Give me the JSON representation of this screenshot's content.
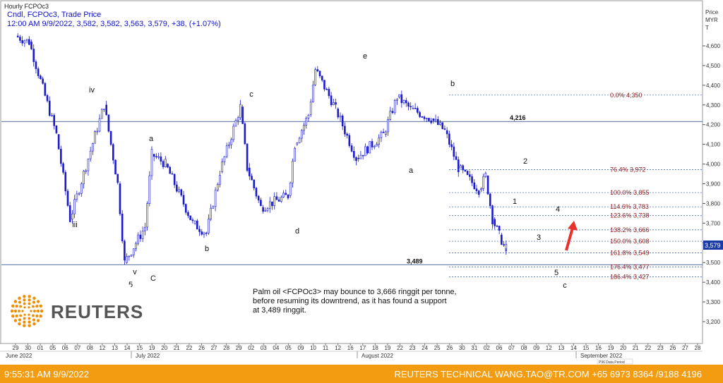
{
  "chart_data": {
    "type": "candlestick",
    "title": "Hourly FCPOc3",
    "header_line1": "Cndl, FCPOc3, Trade Price",
    "header_line2": "12:00 AM 9/9/2022, 3,582, 3,582, 3,563, 3,579, +38, (+1.07%)",
    "ylabel": "Price MYR T",
    "ylabel_lines": [
      "Price",
      "MYR",
      "T"
    ],
    "ylim": [
      3100,
      4700
    ],
    "y_ticks": [
      "3,200",
      "3,300",
      "3,400",
      "3,500",
      "3,600",
      "3,700",
      "3,800",
      "3,900",
      "4,000",
      "4,100",
      "4,200",
      "4,300",
      "4,400",
      "4,500",
      "4,600"
    ],
    "last_price": "3,579",
    "x_day_ticks": [
      "29",
      "30",
      "01",
      "05",
      "06",
      "07",
      "08",
      "12",
      "13",
      "14",
      "15",
      "19",
      "20",
      "21",
      "22",
      "26",
      "27",
      "28",
      "29",
      "02",
      "03",
      "04",
      "05",
      "09",
      "10",
      "11",
      "12",
      "16",
      "17",
      "18",
      "19",
      "22",
      "23",
      "24",
      "25",
      "26",
      "30",
      "31",
      "02",
      "06",
      "07",
      "08",
      "09",
      "12",
      "13",
      "14",
      "15",
      "16",
      "19",
      "20",
      "21",
      "22",
      "23",
      "26",
      "27",
      "28"
    ],
    "x_month_labels": [
      "June 2022",
      "July 2022",
      "August 2022",
      "September 2022"
    ],
    "approx_path": [
      {
        "x": "2022-06-29",
        "y": 4650
      },
      {
        "x": "2022-07-01",
        "y": 4620
      },
      {
        "x": "2022-07-05",
        "y": 4150
      },
      {
        "x": "2022-07-07",
        "y": 3720
      },
      {
        "x": "2022-07-12",
        "y": 4300
      },
      {
        "x": "2022-07-14",
        "y": 3900
      },
      {
        "x": "2022-07-15",
        "y": 3500
      },
      {
        "x": "2022-07-18",
        "y": 3680
      },
      {
        "x": "2022-07-19",
        "y": 4050
      },
      {
        "x": "2022-07-21",
        "y": 4000
      },
      {
        "x": "2022-07-25",
        "y": 3700
      },
      {
        "x": "2022-07-27",
        "y": 3650
      },
      {
        "x": "2022-07-29",
        "y": 3960
      },
      {
        "x": "2022-08-01",
        "y": 4290
      },
      {
        "x": "2022-08-02",
        "y": 3980
      },
      {
        "x": "2022-08-04",
        "y": 3780
      },
      {
        "x": "2022-08-08",
        "y": 3840
      },
      {
        "x": "2022-08-09",
        "y": 4100
      },
      {
        "x": "2022-08-11",
        "y": 4250
      },
      {
        "x": "2022-08-12",
        "y": 4480
      },
      {
        "x": "2022-08-15",
        "y": 4280
      },
      {
        "x": "2022-08-18",
        "y": 4030
      },
      {
        "x": "2022-08-22",
        "y": 4150
      },
      {
        "x": "2022-08-24",
        "y": 4340
      },
      {
        "x": "2022-08-26",
        "y": 4280
      },
      {
        "x": "2022-08-29",
        "y": 4230
      },
      {
        "x": "2022-08-31",
        "y": 4170
      },
      {
        "x": "2022-09-02",
        "y": 3980
      },
      {
        "x": "2022-09-05",
        "y": 3870
      },
      {
        "x": "2022-09-06",
        "y": 3940
      },
      {
        "x": "2022-09-07",
        "y": 3720
      },
      {
        "x": "2022-09-08",
        "y": 3640
      },
      {
        "x": "2022-09-09",
        "y": 3560
      },
      {
        "x": "2022-09-09",
        "y": 3579
      }
    ],
    "horizontal_levels": [
      {
        "label": "4,216",
        "value": 4216
      },
      {
        "label": "3,489",
        "value": 3489
      }
    ],
    "fib_levels": [
      {
        "label": "0.0%",
        "price": "4,350",
        "value": 4350
      },
      {
        "label": "76.4%",
        "price": "3,972",
        "value": 3972
      },
      {
        "label": "100.0%",
        "price": "3,855",
        "value": 3855
      },
      {
        "label": "114.6%",
        "price": "3,783",
        "value": 3783
      },
      {
        "label": "123.6%",
        "price": "3,738",
        "value": 3738
      },
      {
        "label": "138.2%",
        "price": "3,666",
        "value": 3666
      },
      {
        "label": "150.0%",
        "price": "3,608",
        "value": 3608
      },
      {
        "label": "161.8%",
        "price": "3,549",
        "value": 3549
      },
      {
        "label": "176.4%",
        "price": "3,477",
        "value": 3477
      },
      {
        "label": "186.4%",
        "price": "3,427",
        "value": 3427
      }
    ],
    "wave_labels": [
      "iv",
      "iii",
      "v",
      "5",
      "C",
      "a",
      "b",
      "c",
      "d",
      "e",
      "a",
      "b",
      "1",
      "2",
      "3",
      "4",
      "5",
      "c"
    ],
    "annotation": [
      "Palm oil <FCPOc3> may bounce to 3,666 ringgit per tonne,",
      "before resuming its downtrend, as it has found a support",
      "at 3,489 ringgit."
    ],
    "watermark": "P96 Data Period",
    "colors": {
      "candle": "#1a1acc",
      "level_line": "#1c3f7a",
      "fib_line": "#2b5cb5",
      "fib_text": "#8b1a1a",
      "arrow": "#e8322e",
      "footer": "#f39c12",
      "price_tag": "#1a3aa8"
    }
  },
  "logo": {
    "text": "REUTERS"
  },
  "footer": {
    "left": "9:55:31 AM 9/9/2022",
    "right": "REUTERS TECHNICAL  WANG.TAO@TR.COM  +65 6973 8364 /9188 4196"
  }
}
